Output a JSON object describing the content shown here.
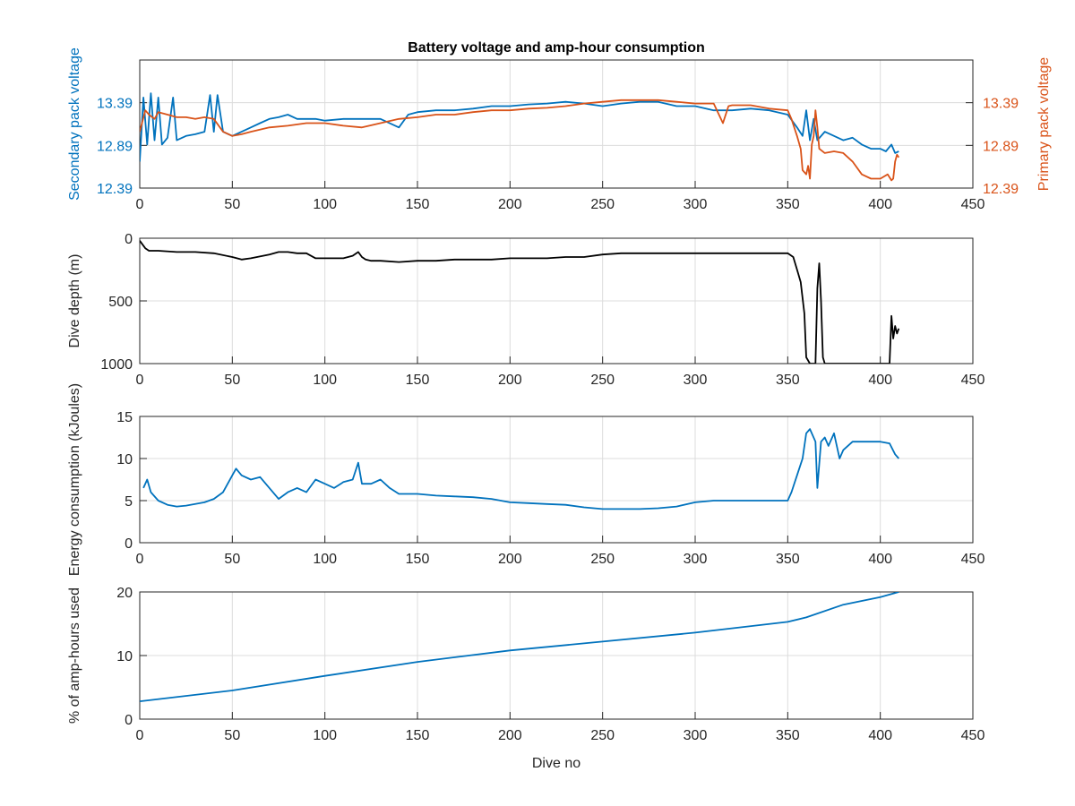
{
  "chart_data": [
    {
      "type": "line",
      "title": "Battery voltage and amp-hour consumption",
      "xlim": [
        0,
        450
      ],
      "x_ticks": [
        "0",
        "50",
        "100",
        "150",
        "200",
        "250",
        "300",
        "350",
        "400",
        "450"
      ],
      "ylim": [
        12.39,
        13.89
      ],
      "y_ticks": [
        "12.39",
        "12.89",
        "13.39"
      ],
      "y_tick_values": [
        12.39,
        12.89,
        13.39
      ],
      "ylabel": "Secondary pack voltage",
      "ylabel_right": "Primary pack voltage",
      "colors": {
        "left": "#0072bd",
        "right": "#d95319"
      },
      "grid": true,
      "series": [
        {
          "axis": "left",
          "color": "#0072bd",
          "x": [
            0,
            2,
            4,
            6,
            8,
            10,
            12,
            15,
            18,
            20,
            25,
            30,
            35,
            38,
            40,
            42,
            45,
            50,
            55,
            60,
            65,
            70,
            75,
            80,
            85,
            90,
            95,
            100,
            110,
            120,
            130,
            140,
            145,
            150,
            160,
            170,
            180,
            190,
            200,
            210,
            220,
            230,
            240,
            250,
            260,
            270,
            280,
            290,
            300,
            310,
            320,
            330,
            340,
            350,
            355,
            358,
            360,
            362,
            364,
            366,
            370,
            375,
            380,
            385,
            390,
            395,
            400,
            403,
            406,
            408,
            410
          ],
          "y": [
            12.7,
            13.45,
            12.9,
            13.5,
            12.95,
            13.45,
            12.9,
            12.98,
            13.45,
            12.95,
            13.0,
            13.02,
            13.05,
            13.48,
            13.05,
            13.48,
            13.05,
            13.0,
            13.05,
            13.1,
            13.15,
            13.2,
            13.22,
            13.25,
            13.2,
            13.2,
            13.2,
            13.18,
            13.2,
            13.2,
            13.2,
            13.1,
            13.25,
            13.28,
            13.3,
            13.3,
            13.32,
            13.35,
            13.35,
            13.37,
            13.38,
            13.4,
            13.38,
            13.35,
            13.38,
            13.4,
            13.4,
            13.35,
            13.35,
            13.3,
            13.3,
            13.32,
            13.3,
            13.25,
            13.1,
            13.0,
            13.3,
            12.95,
            13.2,
            12.95,
            13.05,
            13.0,
            12.95,
            12.98,
            12.9,
            12.85,
            12.85,
            12.82,
            12.9,
            12.8,
            12.82
          ]
        },
        {
          "axis": "right",
          "color": "#d95319",
          "x": [
            0,
            3,
            5,
            8,
            10,
            15,
            20,
            25,
            30,
            35,
            40,
            45,
            50,
            55,
            60,
            70,
            80,
            90,
            100,
            110,
            120,
            130,
            140,
            150,
            160,
            170,
            180,
            190,
            200,
            210,
            220,
            230,
            240,
            250,
            260,
            270,
            280,
            290,
            300,
            310,
            315,
            318,
            320,
            330,
            340,
            350,
            352,
            355,
            357,
            358,
            360,
            361,
            362,
            363,
            364,
            365,
            366,
            367,
            370,
            375,
            380,
            385,
            390,
            395,
            400,
            404,
            406,
            407,
            408,
            409,
            410
          ],
          "y": [
            13.05,
            13.3,
            13.25,
            13.2,
            13.28,
            13.25,
            13.22,
            13.22,
            13.2,
            13.22,
            13.2,
            13.05,
            13.0,
            13.02,
            13.05,
            13.1,
            13.12,
            13.15,
            13.15,
            13.12,
            13.1,
            13.15,
            13.2,
            13.22,
            13.25,
            13.25,
            13.28,
            13.3,
            13.3,
            13.32,
            13.33,
            13.35,
            13.38,
            13.4,
            13.42,
            13.42,
            13.42,
            13.4,
            13.38,
            13.38,
            13.15,
            13.35,
            13.36,
            13.36,
            13.32,
            13.3,
            13.2,
            13.0,
            12.85,
            12.6,
            12.55,
            12.65,
            12.5,
            12.9,
            13.0,
            13.3,
            13.1,
            12.85,
            12.8,
            12.82,
            12.8,
            12.7,
            12.55,
            12.5,
            12.5,
            12.55,
            12.48,
            12.5,
            12.7,
            12.78,
            12.75
          ]
        }
      ]
    },
    {
      "type": "line",
      "xlim": [
        0,
        450
      ],
      "x_ticks": [
        "0",
        "50",
        "100",
        "150",
        "200",
        "250",
        "300",
        "350",
        "400",
        "450"
      ],
      "ylim": [
        0,
        1000
      ],
      "y_reversed": true,
      "y_ticks": [
        "0",
        "500",
        "1000"
      ],
      "y_tick_values": [
        0,
        500,
        1000
      ],
      "ylabel": "Dive depth (m)",
      "grid": true,
      "series": [
        {
          "color": "#000000",
          "x": [
            0,
            3,
            5,
            10,
            20,
            30,
            40,
            50,
            55,
            60,
            70,
            75,
            80,
            85,
            90,
            95,
            100,
            105,
            110,
            115,
            118,
            120,
            122,
            125,
            130,
            140,
            150,
            160,
            170,
            180,
            190,
            200,
            210,
            220,
            230,
            240,
            250,
            260,
            270,
            280,
            290,
            300,
            310,
            320,
            330,
            340,
            350,
            353,
            355,
            357,
            359,
            360,
            362,
            365,
            366,
            367,
            368,
            369,
            370,
            375,
            380,
            385,
            390,
            395,
            400,
            405,
            406,
            407,
            408,
            409,
            410
          ],
          "y": [
            20,
            80,
            100,
            100,
            110,
            110,
            120,
            150,
            170,
            160,
            130,
            110,
            110,
            120,
            120,
            160,
            160,
            160,
            160,
            140,
            110,
            150,
            170,
            180,
            180,
            190,
            180,
            180,
            170,
            170,
            170,
            160,
            160,
            160,
            150,
            150,
            130,
            120,
            120,
            120,
            120,
            120,
            120,
            120,
            120,
            120,
            120,
            150,
            250,
            350,
            600,
            950,
            1000,
            1000,
            400,
            200,
            500,
            950,
            1000,
            1000,
            1000,
            1000,
            1000,
            1000,
            1000,
            1000,
            620,
            800,
            700,
            760,
            720
          ]
        }
      ]
    },
    {
      "type": "line",
      "xlim": [
        0,
        450
      ],
      "x_ticks": [
        "0",
        "50",
        "100",
        "150",
        "200",
        "250",
        "300",
        "350",
        "400",
        "450"
      ],
      "ylim": [
        0,
        15
      ],
      "y_ticks": [
        "0",
        "5",
        "10",
        "15"
      ],
      "y_tick_values": [
        0,
        5,
        10,
        15
      ],
      "ylabel": "Energy consumption (kJoules)",
      "grid": true,
      "series": [
        {
          "color": "#0072bd",
          "x": [
            2,
            4,
            6,
            10,
            15,
            20,
            25,
            30,
            35,
            40,
            45,
            50,
            52,
            55,
            60,
            65,
            70,
            75,
            80,
            85,
            90,
            95,
            100,
            105,
            110,
            115,
            118,
            120,
            125,
            130,
            135,
            140,
            150,
            160,
            170,
            180,
            190,
            200,
            210,
            220,
            230,
            240,
            250,
            260,
            270,
            280,
            290,
            300,
            310,
            320,
            330,
            340,
            350,
            352,
            355,
            358,
            360,
            362,
            365,
            366,
            368,
            370,
            372,
            375,
            378,
            380,
            385,
            390,
            395,
            400,
            405,
            408,
            410
          ],
          "y": [
            6.5,
            7.5,
            6.0,
            5.0,
            4.5,
            4.3,
            4.4,
            4.6,
            4.8,
            5.2,
            6.0,
            8.0,
            8.8,
            8.0,
            7.5,
            7.8,
            6.5,
            5.2,
            6.0,
            6.5,
            6.0,
            7.5,
            7.0,
            6.5,
            7.2,
            7.5,
            9.5,
            7.0,
            7.0,
            7.5,
            6.5,
            5.8,
            5.8,
            5.6,
            5.5,
            5.4,
            5.2,
            4.8,
            4.7,
            4.6,
            4.5,
            4.2,
            4.0,
            4.0,
            4.0,
            4.1,
            4.3,
            4.8,
            5.0,
            5.0,
            5.0,
            5.0,
            5.0,
            6.0,
            8.0,
            10.0,
            13.0,
            13.5,
            12.0,
            6.5,
            12.0,
            12.5,
            11.5,
            13.0,
            10.0,
            11.0,
            12.0,
            12.0,
            12.0,
            12.0,
            11.8,
            10.5,
            10.0
          ]
        }
      ]
    },
    {
      "type": "line",
      "xlim": [
        0,
        450
      ],
      "x_ticks": [
        "0",
        "50",
        "100",
        "150",
        "200",
        "250",
        "300",
        "350",
        "400",
        "450"
      ],
      "ylim": [
        0,
        20
      ],
      "y_ticks": [
        "0",
        "10",
        "20"
      ],
      "y_tick_values": [
        0,
        10,
        20
      ],
      "ylabel": "% of amp-hours used",
      "xlabel": "Dive no",
      "grid": true,
      "series": [
        {
          "color": "#0072bd",
          "x": [
            0,
            50,
            100,
            150,
            200,
            250,
            300,
            350,
            360,
            380,
            400,
            410
          ],
          "y": [
            2.8,
            4.5,
            6.8,
            9.0,
            10.8,
            12.2,
            13.6,
            15.3,
            16.0,
            18.0,
            19.2,
            20.0
          ]
        }
      ]
    }
  ]
}
